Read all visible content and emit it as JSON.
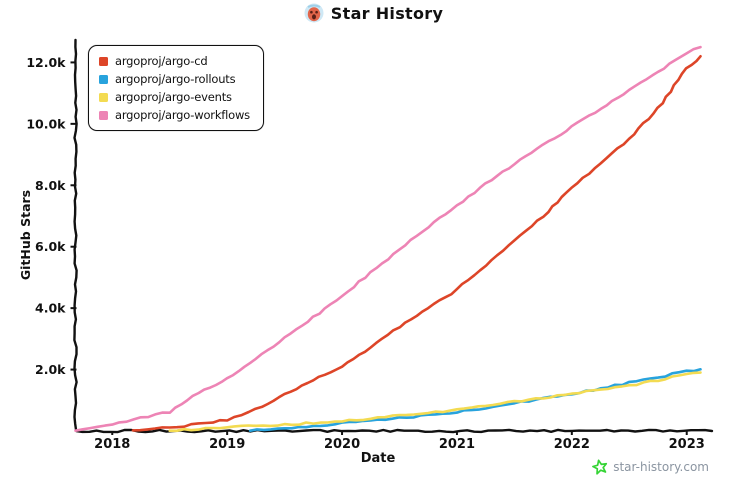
{
  "title": {
    "text": "Star History",
    "emoji": "screaming-face"
  },
  "watermark": {
    "site": "star-history.com"
  },
  "colors": {
    "axis": "#111111",
    "legend_border": "#111111",
    "watermark_text": "#8b95a1",
    "watermark_star": "#35d435"
  },
  "chart_data": {
    "type": "line",
    "title": "Star History",
    "xlabel": "Date",
    "ylabel": "GitHub Stars",
    "grid": false,
    "legend_position": "top-left",
    "xlim": [
      2017.68,
      2023.22
    ],
    "ylim": [
      0,
      12730
    ],
    "x_ticks": [
      {
        "value": 2018,
        "label": "2018"
      },
      {
        "value": 2019,
        "label": "2019"
      },
      {
        "value": 2020,
        "label": "2020"
      },
      {
        "value": 2021,
        "label": "2021"
      },
      {
        "value": 2022,
        "label": "2022"
      },
      {
        "value": 2023,
        "label": "2023"
      }
    ],
    "y_ticks": [
      {
        "value": 2000,
        "label": "2.0k"
      },
      {
        "value": 4000,
        "label": "4.0k"
      },
      {
        "value": 6000,
        "label": "6.0k"
      },
      {
        "value": 8000,
        "label": "8.0k"
      },
      {
        "value": 10000,
        "label": "10.0k"
      },
      {
        "value": 12000,
        "label": "12.0k"
      }
    ],
    "series": [
      {
        "name": "argoproj/argo-cd",
        "color": "#dd4528",
        "points": [
          [
            2018.18,
            20
          ],
          [
            2018.5,
            120
          ],
          [
            2018.75,
            220
          ],
          [
            2019.0,
            360
          ],
          [
            2019.25,
            700
          ],
          [
            2019.5,
            1200
          ],
          [
            2019.75,
            1650
          ],
          [
            2020.0,
            2100
          ],
          [
            2020.25,
            2700
          ],
          [
            2020.5,
            3400
          ],
          [
            2020.75,
            4000
          ],
          [
            2021.0,
            4600
          ],
          [
            2021.25,
            5400
          ],
          [
            2021.5,
            6200
          ],
          [
            2021.75,
            7000
          ],
          [
            2022.0,
            7900
          ],
          [
            2022.25,
            8700
          ],
          [
            2022.5,
            9500
          ],
          [
            2022.75,
            10500
          ],
          [
            2023.0,
            11800
          ],
          [
            2023.12,
            12200
          ]
        ]
      },
      {
        "name": "argoproj/argo-rollouts",
        "color": "#28a3dd",
        "points": [
          [
            2019.2,
            10
          ],
          [
            2019.5,
            80
          ],
          [
            2019.75,
            160
          ],
          [
            2020.0,
            250
          ],
          [
            2020.25,
            330
          ],
          [
            2020.5,
            420
          ],
          [
            2020.75,
            520
          ],
          [
            2021.0,
            620
          ],
          [
            2021.25,
            750
          ],
          [
            2021.5,
            900
          ],
          [
            2021.75,
            1050
          ],
          [
            2022.0,
            1200
          ],
          [
            2022.25,
            1380
          ],
          [
            2022.5,
            1570
          ],
          [
            2022.75,
            1750
          ],
          [
            2023.0,
            1950
          ],
          [
            2023.12,
            2010
          ]
        ]
      },
      {
        "name": "argoproj/argo-events",
        "color": "#f3db52",
        "points": [
          [
            2018.5,
            10
          ],
          [
            2018.75,
            60
          ],
          [
            2019.0,
            120
          ],
          [
            2019.25,
            160
          ],
          [
            2019.5,
            210
          ],
          [
            2019.75,
            260
          ],
          [
            2020.0,
            320
          ],
          [
            2020.25,
            400
          ],
          [
            2020.5,
            500
          ],
          [
            2020.75,
            590
          ],
          [
            2021.0,
            680
          ],
          [
            2021.25,
            810
          ],
          [
            2021.5,
            950
          ],
          [
            2021.75,
            1080
          ],
          [
            2022.0,
            1220
          ],
          [
            2022.25,
            1340
          ],
          [
            2022.5,
            1480
          ],
          [
            2022.75,
            1650
          ],
          [
            2023.0,
            1850
          ],
          [
            2023.12,
            1900
          ]
        ]
      },
      {
        "name": "argoproj/argo-workflows",
        "color": "#ed84b5",
        "points": [
          [
            2017.68,
            10
          ],
          [
            2018.0,
            200
          ],
          [
            2018.25,
            420
          ],
          [
            2018.5,
            620
          ],
          [
            2018.75,
            1250
          ],
          [
            2019.0,
            1700
          ],
          [
            2019.25,
            2350
          ],
          [
            2019.5,
            3050
          ],
          [
            2019.75,
            3700
          ],
          [
            2020.0,
            4400
          ],
          [
            2020.25,
            5150
          ],
          [
            2020.5,
            5900
          ],
          [
            2020.75,
            6650
          ],
          [
            2021.0,
            7350
          ],
          [
            2021.25,
            8050
          ],
          [
            2021.5,
            8700
          ],
          [
            2021.75,
            9300
          ],
          [
            2022.0,
            9900
          ],
          [
            2022.25,
            10500
          ],
          [
            2022.5,
            11100
          ],
          [
            2022.75,
            11700
          ],
          [
            2023.0,
            12300
          ],
          [
            2023.12,
            12500
          ]
        ]
      }
    ]
  }
}
